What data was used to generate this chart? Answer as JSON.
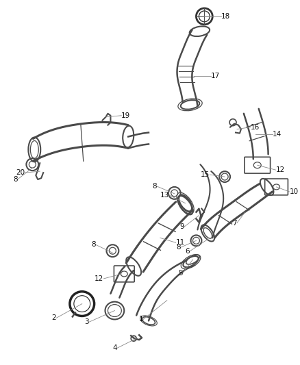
{
  "bg_color": "#ffffff",
  "line_color": "#4a4a4a",
  "label_color": "#222222",
  "font_size": 7.5,
  "fig_w": 4.38,
  "fig_h": 5.33,
  "dpi": 100
}
